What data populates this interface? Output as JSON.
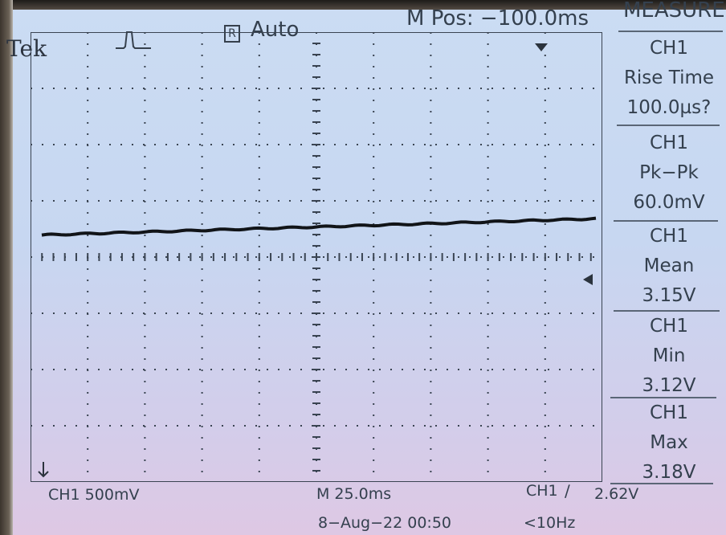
{
  "header": {
    "brand": "Tek",
    "run_state_glyph": "R",
    "trigger_mode": "Auto",
    "m_pos": "M Pos: −100.0ms"
  },
  "icons": {
    "trigger_icon": "pulse-trigger-icon",
    "trigger_position_marker": "down-arrow-marker",
    "trigger_level_marker": "left-arrow-marker",
    "ch1_ground_marker": "ch1-ground-marker"
  },
  "measure": {
    "title": "MEASURE",
    "items": [
      {
        "channel": "CH1",
        "name": "Rise Time",
        "value": "100.0µs?"
      },
      {
        "channel": "CH1",
        "name": "Pk−Pk",
        "value": "60.0mV"
      },
      {
        "channel": "CH1",
        "name": "Mean",
        "value": "3.15V"
      },
      {
        "channel": "CH1",
        "name": "Min",
        "value": "3.12V"
      },
      {
        "channel": "CH1",
        "name": "Max",
        "value": "3.18V"
      }
    ]
  },
  "footer": {
    "ch1_scale": "CH1  500mV",
    "timebase": "M 25.0ms",
    "trigger_source": "CH1",
    "trigger_slope": "∕",
    "trigger_level": "2.62V",
    "datetime": "8−Aug−22 00:50",
    "frequency": "<10Hz"
  },
  "colors": {
    "screen": "#c9d9f2",
    "ink": "#34404e",
    "trace": "#111418"
  }
}
